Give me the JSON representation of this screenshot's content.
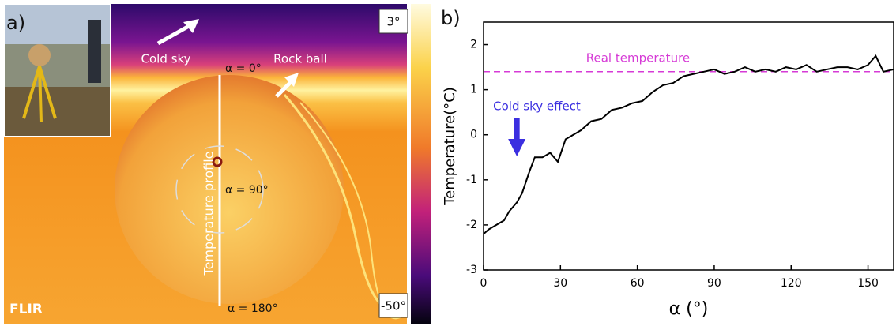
{
  "panel_a": {
    "label": "a)",
    "cold_sky": "Cold sky",
    "rock_ball": "Rock ball",
    "alpha_0": "α = 0°",
    "alpha_90": "α = 90°",
    "alpha_180": "α = 180°",
    "profile": "Temperature profile",
    "scale_max": "3°",
    "scale_min": "-50°",
    "logo": "FLIR"
  },
  "chart_data": {
    "type": "line",
    "panel_label": "b)",
    "x_label": "α (°)",
    "y_label": "Temperature(°C)",
    "reference_label": "Real temperature",
    "reference_value": 1.4,
    "reference_color": "#d63ad6",
    "annotation": "Cold sky effect",
    "annotation_x": 13,
    "annotation_color": "#3b2fe0",
    "xlim": [
      0,
      160
    ],
    "xticks": [
      0,
      30,
      60,
      90,
      120,
      150
    ],
    "ylim": [
      -3,
      2.5
    ],
    "yticks": [
      -3,
      -2,
      -1,
      0,
      1,
      2
    ],
    "x": [
      0,
      2,
      5,
      8,
      10,
      13,
      15,
      18,
      20,
      23,
      26,
      29,
      32,
      35,
      38,
      42,
      46,
      50,
      54,
      58,
      62,
      66,
      70,
      74,
      78,
      82,
      86,
      90,
      94,
      98,
      102,
      106,
      110,
      114,
      118,
      122,
      126,
      130,
      134,
      138,
      142,
      146,
      150,
      153,
      156,
      160
    ],
    "series": [
      {
        "color": "#000000",
        "values": [
          -2.2,
          -2.1,
          -2.0,
          -1.9,
          -1.7,
          -1.5,
          -1.3,
          -0.8,
          -0.5,
          -0.5,
          -0.4,
          -0.6,
          -0.1,
          0.0,
          0.1,
          0.3,
          0.35,
          0.55,
          0.6,
          0.7,
          0.75,
          0.95,
          1.1,
          1.15,
          1.3,
          1.35,
          1.4,
          1.45,
          1.35,
          1.4,
          1.5,
          1.4,
          1.45,
          1.4,
          1.5,
          1.45,
          1.55,
          1.4,
          1.45,
          1.5,
          1.5,
          1.45,
          1.55,
          1.75,
          1.4,
          1.45
        ]
      }
    ]
  }
}
